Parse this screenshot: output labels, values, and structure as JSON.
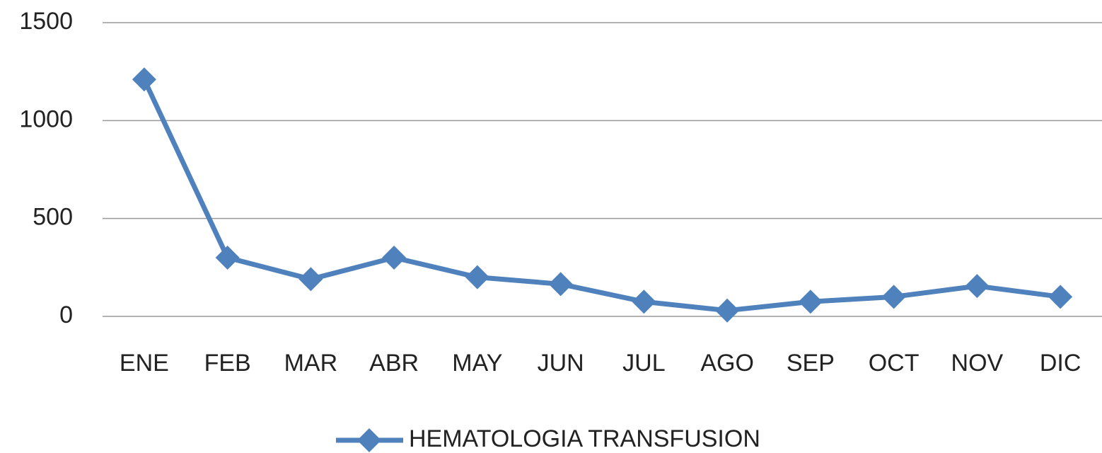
{
  "chart_data": {
    "type": "line",
    "categories": [
      "ENE",
      "FEB",
      "MAR",
      "ABR",
      "MAY",
      "JUN",
      "JUL",
      "AGO",
      "SEP",
      "OCT",
      "NOV",
      "DIC"
    ],
    "series": [
      {
        "name": "HEMATOLOGIA TRANSFUSION",
        "color": "#4f81bd",
        "values": [
          1210,
          300,
          190,
          300,
          200,
          165,
          75,
          30,
          75,
          100,
          155,
          100
        ]
      }
    ],
    "ylim": [
      0,
      1500
    ],
    "yticks": [
      0,
      500,
      1000,
      1500
    ],
    "grid": true,
    "legend": "bottom",
    "marker": "diamond"
  }
}
